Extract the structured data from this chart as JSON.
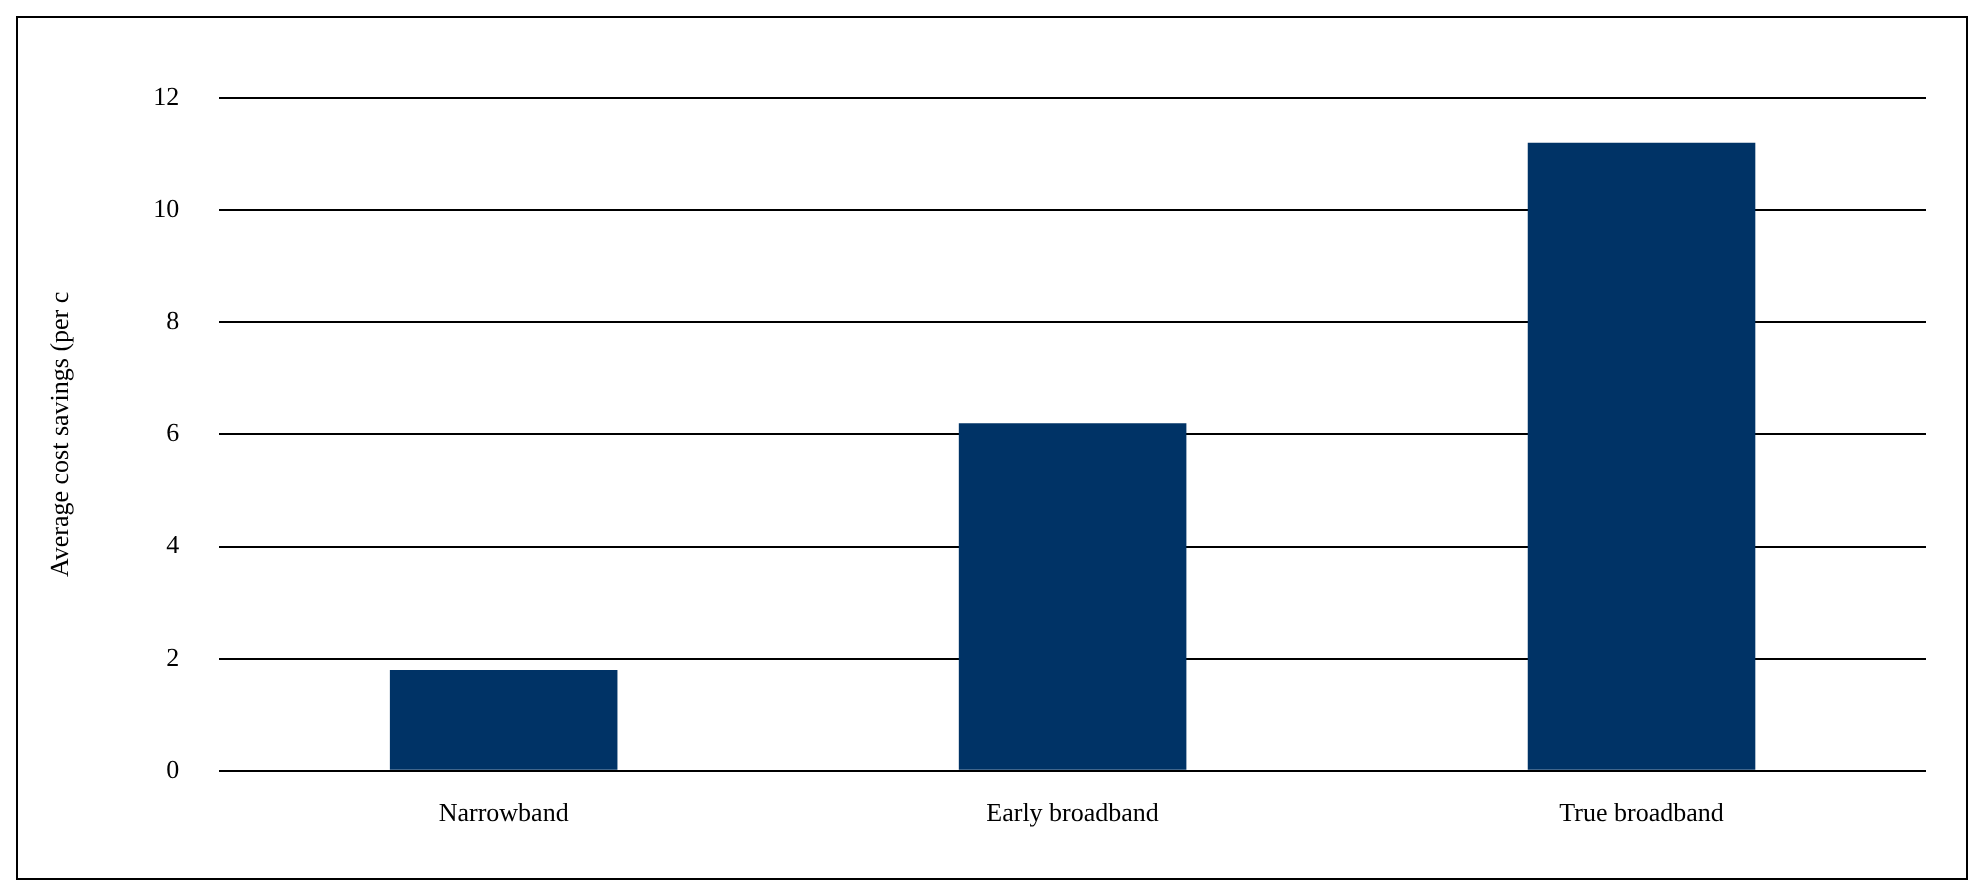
{
  "chart_data": {
    "type": "bar",
    "ylabel": "Average cost savings (per c",
    "categories": [
      "Narrowband",
      "Early broadband",
      "True broadband"
    ],
    "values": [
      1.8,
      6.2,
      11.2
    ],
    "color": "#003366",
    "ylim": [
      0,
      12
    ],
    "yticks": [
      0,
      2,
      4,
      6,
      8,
      10,
      12
    ],
    "grid": "y"
  }
}
